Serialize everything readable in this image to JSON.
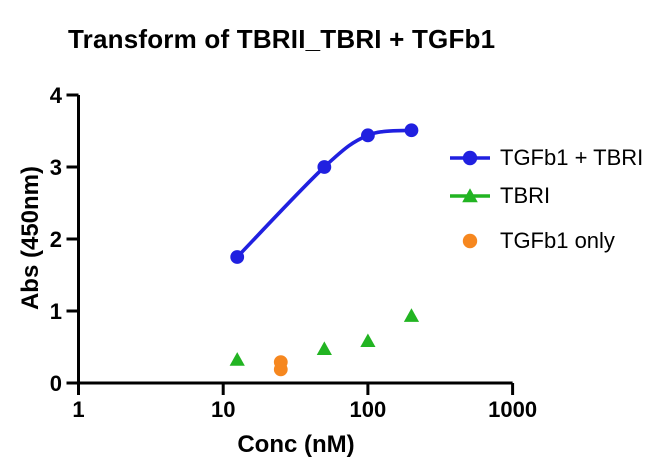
{
  "chart_data": {
    "type": "scatter",
    "title": "Transform of TBRII_TBRI + TGFb1",
    "xlabel": "Conc (nM)",
    "ylabel": "Abs (450nm)",
    "xscale": "log",
    "xlim": [
      1,
      1000
    ],
    "ylim": [
      0,
      4
    ],
    "x_ticks": [
      "1",
      "10",
      "100",
      "1000"
    ],
    "y_ticks": [
      "0",
      "1",
      "2",
      "3",
      "4"
    ],
    "grid": false,
    "legend_position": "right",
    "axis_color": "#000000",
    "background_color": "#ffffff",
    "series": [
      {
        "name": "TGFb1 + TBRI",
        "color": "#2020e0",
        "marker": "circle",
        "line": "smooth",
        "legend_shows_line": true,
        "x": [
          12.5,
          50,
          100,
          200
        ],
        "y": [
          1.75,
          3.0,
          3.44,
          3.51
        ]
      },
      {
        "name": "TBRI",
        "color": "#22b422",
        "marker": "triangle",
        "line": "none",
        "legend_shows_line": true,
        "x": [
          12.5,
          50,
          100,
          200
        ],
        "y": [
          0.32,
          0.47,
          0.58,
          0.93
        ]
      },
      {
        "name": "TGFb1 only",
        "color": "#f6871f",
        "marker": "circle",
        "line": "none",
        "legend_shows_line": false,
        "x": [
          25,
          25
        ],
        "y": [
          0.29,
          0.19
        ]
      }
    ]
  }
}
